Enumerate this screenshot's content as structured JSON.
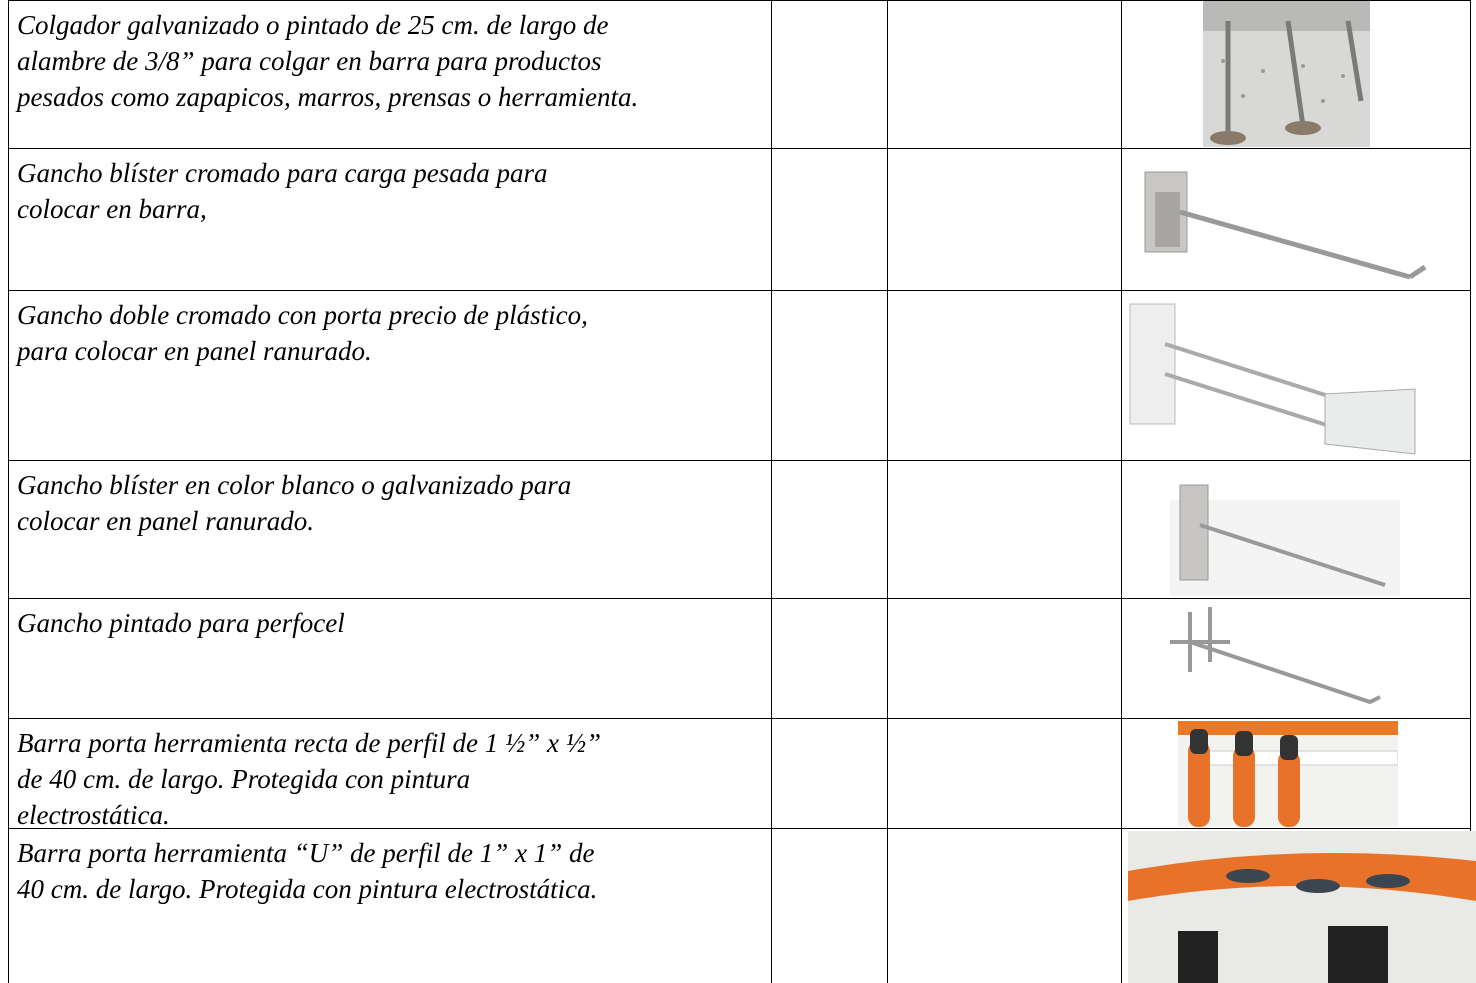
{
  "table": {
    "rows": [
      {
        "description": [
          "Colgador galvanizado o pintado de 25 cm. de largo de",
          "alambre de 3/8” para colgar en barra para productos",
          "pesados como zapapicos, marros, prensas o herramienta."
        ]
      },
      {
        "description": [
          "Gancho blíster cromado para carga pesada para",
          "colocar en barra,"
        ]
      },
      {
        "description": [
          "Gancho doble cromado con porta precio de plástico,",
          "para colocar en panel ranurado."
        ]
      },
      {
        "description": [
          "Gancho blíster en color blanco o galvanizado para",
          "colocar en panel ranurado."
        ]
      },
      {
        "description": [
          "Gancho pintado para perfocel"
        ]
      },
      {
        "description": [
          "Barra porta herramienta recta de perfil de 1 ½” x ½”",
          "de 40 cm. de largo. Protegida con pintura",
          "electrostática."
        ]
      },
      {
        "description": [
          "Barra porta herramienta “U” de perfil de 1” x 1” de",
          "40 cm. de largo. Protegida con pintura electrostática."
        ]
      }
    ]
  }
}
